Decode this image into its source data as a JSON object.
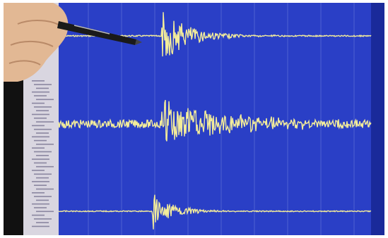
{
  "scene": {
    "description_free": true,
    "colors": {
      "screen": "#2a3fc6",
      "screen_edge": "#1a2a9a",
      "trace": "#f3ec9a",
      "grid": "#7f8fe0",
      "bezel": "#111111",
      "side_panel": "#d9d6e0",
      "skin": "#e2b894",
      "pen": "#1a1a1a"
    },
    "icons": [
      "hand-icon",
      "pen-icon"
    ]
  },
  "seismogram": {
    "traces": [
      {
        "name": "trace-top",
        "event_at": 0.33,
        "peak": 0.9,
        "decay": 0.08,
        "noise": 0.02
      },
      {
        "name": "trace-middle",
        "event_at": 0.33,
        "peak": 0.75,
        "decay": 0.18,
        "noise": 0.12
      },
      {
        "name": "trace-bottom",
        "event_at": 0.3,
        "peak": 0.8,
        "decay": 0.06,
        "noise": 0.02
      }
    ]
  }
}
